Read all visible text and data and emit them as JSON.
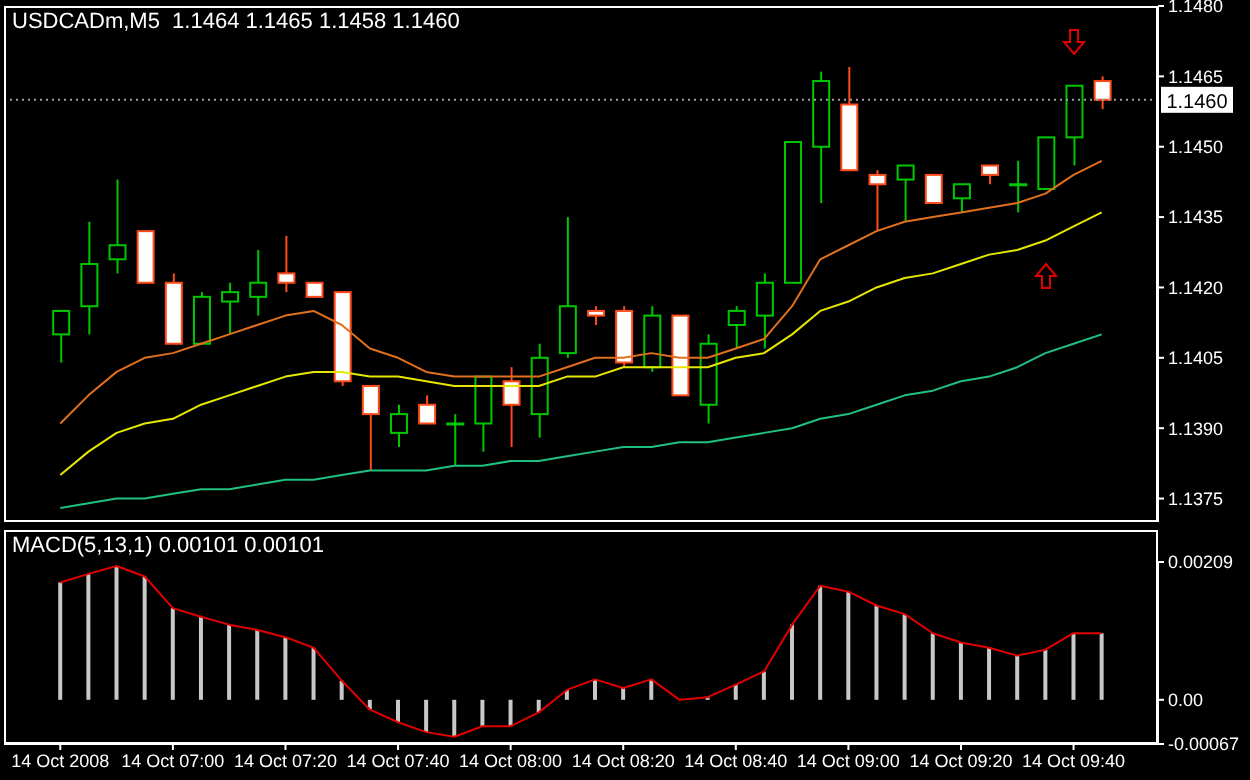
{
  "chart_data": [
    {
      "type": "candlestick",
      "title": "USDCADm,M5  1.1464 1.1465 1.1458 1.1460",
      "tick_labels": "y",
      "x": [
        "2008-10-14T06:40",
        "2008-10-14T06:45",
        "2008-10-14T06:50",
        "2008-10-14T06:55",
        "2008-10-14T07:00",
        "2008-10-14T07:05",
        "2008-10-14T07:10",
        "2008-10-14T07:15",
        "2008-10-14T07:20",
        "2008-10-14T07:25",
        "2008-10-14T07:30",
        "2008-10-14T07:35",
        "2008-10-14T07:40",
        "2008-10-14T07:45",
        "2008-10-14T07:50",
        "2008-10-14T07:55",
        "2008-10-14T08:00",
        "2008-10-14T08:05",
        "2008-10-14T08:10",
        "2008-10-14T08:15",
        "2008-10-14T08:20",
        "2008-10-14T08:25",
        "2008-10-14T08:30",
        "2008-10-14T08:35",
        "2008-10-14T08:40",
        "2008-10-14T08:45",
        "2008-10-14T08:50",
        "2008-10-14T08:55",
        "2008-10-14T09:00",
        "2008-10-14T09:05",
        "2008-10-14T09:10",
        "2008-10-14T09:15",
        "2008-10-14T09:20",
        "2008-10-14T09:25",
        "2008-10-14T09:30",
        "2008-10-14T09:35",
        "2008-10-14T09:40",
        "2008-10-14T09:45"
      ],
      "ohlc": [
        [
          1.141,
          1.1415,
          1.1404,
          1.1415
        ],
        [
          1.1416,
          1.1434,
          1.141,
          1.1425
        ],
        [
          1.1426,
          1.1443,
          1.1423,
          1.1429
        ],
        [
          1.1432,
          1.1432,
          1.1421,
          1.1421
        ],
        [
          1.1421,
          1.1423,
          1.1408,
          1.1408
        ],
        [
          1.1408,
          1.1419,
          1.1408,
          1.1418
        ],
        [
          1.1417,
          1.1421,
          1.141,
          1.1419
        ],
        [
          1.1418,
          1.1428,
          1.1414,
          1.1421
        ],
        [
          1.1423,
          1.1431,
          1.1419,
          1.1421
        ],
        [
          1.1421,
          1.1421,
          1.1418,
          1.1418
        ],
        [
          1.1419,
          1.1419,
          1.1399,
          1.14
        ],
        [
          1.1399,
          1.1399,
          1.1381,
          1.1393
        ],
        [
          1.1389,
          1.1395,
          1.1386,
          1.1393
        ],
        [
          1.1395,
          1.1397,
          1.1391,
          1.1391
        ],
        [
          1.1391,
          1.1393,
          1.1382,
          1.1391
        ],
        [
          1.1391,
          1.1401,
          1.1385,
          1.1401
        ],
        [
          1.14,
          1.1403,
          1.1386,
          1.1395
        ],
        [
          1.1393,
          1.1408,
          1.1388,
          1.1405
        ],
        [
          1.1406,
          1.1435,
          1.1405,
          1.1416
        ],
        [
          1.1415,
          1.1416,
          1.1412,
          1.1414
        ],
        [
          1.1415,
          1.1416,
          1.1403,
          1.1404
        ],
        [
          1.1403,
          1.1416,
          1.1402,
          1.1414
        ],
        [
          1.1414,
          1.1414,
          1.1397,
          1.1397
        ],
        [
          1.1395,
          1.141,
          1.1391,
          1.1408
        ],
        [
          1.1412,
          1.1416,
          1.1407,
          1.1415
        ],
        [
          1.1414,
          1.1423,
          1.1407,
          1.1421
        ],
        [
          1.1421,
          1.1451,
          1.1421,
          1.1451
        ],
        [
          1.145,
          1.1466,
          1.1438,
          1.1464
        ],
        [
          1.1459,
          1.1467,
          1.1445,
          1.1445
        ],
        [
          1.1444,
          1.1445,
          1.1432,
          1.1442
        ],
        [
          1.1443,
          1.1446,
          1.1434,
          1.1446
        ],
        [
          1.1444,
          1.1444,
          1.1438,
          1.1438
        ],
        [
          1.1439,
          1.1442,
          1.1436,
          1.1442
        ],
        [
          1.1446,
          1.1446,
          1.1442,
          1.1444
        ],
        [
          1.1442,
          1.1447,
          1.1436,
          1.1442
        ],
        [
          1.1441,
          1.1452,
          1.1441,
          1.1452
        ],
        [
          1.1452,
          1.1463,
          1.1446,
          1.1463
        ],
        [
          1.1464,
          1.1465,
          1.1458,
          1.146
        ]
      ],
      "series": [
        {
          "type": "line",
          "color": "#e0701c",
          "values": [
            1.1391,
            1.1397,
            1.1402,
            1.1405,
            1.1406,
            1.1408,
            1.141,
            1.1412,
            1.1414,
            1.1415,
            1.1412,
            1.1407,
            1.1405,
            1.1402,
            1.1401,
            1.1401,
            1.1401,
            1.1401,
            1.1403,
            1.1405,
            1.1405,
            1.1406,
            1.1405,
            1.1405,
            1.1407,
            1.1409,
            1.1416,
            1.1426,
            1.1429,
            1.1432,
            1.1434,
            1.1435,
            1.1436,
            1.1437,
            1.1438,
            1.144,
            1.1444,
            1.1447
          ]
        },
        {
          "type": "line",
          "color": "#e6e600",
          "values": [
            1.138,
            1.1385,
            1.1389,
            1.1391,
            1.1392,
            1.1395,
            1.1397,
            1.1399,
            1.1401,
            1.1402,
            1.1402,
            1.1401,
            1.1401,
            1.14,
            1.1399,
            1.1399,
            1.1399,
            1.1399,
            1.1401,
            1.1401,
            1.1403,
            1.1403,
            1.1403,
            1.1403,
            1.1405,
            1.1406,
            1.141,
            1.1415,
            1.1417,
            1.142,
            1.1422,
            1.1423,
            1.1425,
            1.1427,
            1.1428,
            1.143,
            1.1433,
            1.1436
          ]
        },
        {
          "type": "line",
          "color": "#20c080",
          "values": [
            1.1373,
            1.1374,
            1.1375,
            1.1375,
            1.1376,
            1.1377,
            1.1377,
            1.1378,
            1.1379,
            1.1379,
            1.138,
            1.1381,
            1.1381,
            1.1381,
            1.1382,
            1.1382,
            1.1383,
            1.1383,
            1.1384,
            1.1385,
            1.1386,
            1.1386,
            1.1387,
            1.1387,
            1.1388,
            1.1389,
            1.139,
            1.1392,
            1.1393,
            1.1395,
            1.1397,
            1.1398,
            1.14,
            1.1401,
            1.1403,
            1.1406,
            1.1408,
            1.141
          ]
        }
      ],
      "xlim": [
        "2008-10-14T06:30",
        "2008-10-14T09:55"
      ],
      "ylim": [
        1.137,
        1.148
      ],
      "yticks": [
        {
          "value": 1.1375,
          "label": "1.1375"
        },
        {
          "value": 1.139,
          "label": "1.1390"
        },
        {
          "value": 1.1405,
          "label": "1.1405"
        },
        {
          "value": 1.142,
          "label": "1.1420"
        },
        {
          "value": 1.1435,
          "label": "1.1435"
        },
        {
          "value": 1.145,
          "label": "1.1450"
        },
        {
          "value": 1.1465,
          "label": "1.1465"
        },
        {
          "value": 1.148,
          "label": "1.1480"
        }
      ],
      "ref_lines": [
        {
          "axis": "y",
          "value": 1.146,
          "label": "1.1460",
          "color": "#a0a0a0",
          "line_style": "dotted"
        }
      ]
    },
    {
      "type": "bar",
      "title": "MACD(5,13,1) 0.00101 0.00101",
      "x": [
        "2008-10-14T06:40",
        "2008-10-14T06:45",
        "2008-10-14T06:50",
        "2008-10-14T06:55",
        "2008-10-14T07:00",
        "2008-10-14T07:05",
        "2008-10-14T07:10",
        "2008-10-14T07:15",
        "2008-10-14T07:20",
        "2008-10-14T07:25",
        "2008-10-14T07:30",
        "2008-10-14T07:35",
        "2008-10-14T07:40",
        "2008-10-14T07:45",
        "2008-10-14T07:50",
        "2008-10-14T07:55",
        "2008-10-14T08:00",
        "2008-10-14T08:05",
        "2008-10-14T08:10",
        "2008-10-14T08:15",
        "2008-10-14T08:20",
        "2008-10-14T08:25",
        "2008-10-14T08:30",
        "2008-10-14T08:35",
        "2008-10-14T08:40",
        "2008-10-14T08:45",
        "2008-10-14T08:50",
        "2008-10-14T08:55",
        "2008-10-14T09:00",
        "2008-10-14T09:05",
        "2008-10-14T09:10",
        "2008-10-14T09:15",
        "2008-10-14T09:20",
        "2008-10-14T09:25",
        "2008-10-14T09:30",
        "2008-10-14T09:35",
        "2008-10-14T09:40",
        "2008-10-14T09:45"
      ],
      "series": [
        {
          "color": "#c8c8c8",
          "values": [
            0.00178,
            0.00191,
            0.00203,
            0.00187,
            0.00139,
            0.00126,
            0.00114,
            0.00106,
            0.00095,
            0.00079,
            0.00029,
            -0.00015,
            -0.00034,
            -0.00049,
            -0.00056,
            -0.0004,
            -0.0004,
            -0.00019,
            0.00015,
            0.00031,
            0.00018,
            0.00031,
            0,
            4e-05,
            0.00023,
            0.00043,
            0.00114,
            0.00173,
            0.00164,
            0.00143,
            0.0013,
            0.00101,
            0.00087,
            0.00079,
            0.00067,
            0.00076,
            0.00101,
            0.00101
          ]
        },
        {
          "type": "line",
          "color": "#e00000",
          "values": [
            0.00178,
            0.00191,
            0.00203,
            0.00187,
            0.00139,
            0.00126,
            0.00114,
            0.00106,
            0.00095,
            0.00079,
            0.00029,
            -0.00015,
            -0.00034,
            -0.00049,
            -0.00056,
            -0.0004,
            -0.0004,
            -0.00019,
            0.00015,
            0.00031,
            0.00018,
            0.00031,
            0,
            4e-05,
            0.00023,
            0.00043,
            0.00114,
            0.00173,
            0.00164,
            0.00143,
            0.0013,
            0.00101,
            0.00087,
            0.00079,
            0.00067,
            0.00076,
            0.00101,
            0.00101
          ]
        }
      ],
      "xlim": [
        "2008-10-14T06:30",
        "2008-10-14T09:55"
      ],
      "xticks": [
        {
          "value": "2008-10-14T06:40",
          "label": "14 Oct 2008"
        },
        {
          "value": "2008-10-14T07:00",
          "label": "14 Oct 07:00"
        },
        {
          "value": "2008-10-14T07:20",
          "label": "14 Oct 07:20"
        },
        {
          "value": "2008-10-14T07:40",
          "label": "14 Oct 07:40"
        },
        {
          "value": "2008-10-14T08:00",
          "label": "14 Oct 08:00"
        },
        {
          "value": "2008-10-14T08:20",
          "label": "14 Oct 08:20"
        },
        {
          "value": "2008-10-14T08:40",
          "label": "14 Oct 08:40"
        },
        {
          "value": "2008-10-14T09:00",
          "label": "14 Oct 09:00"
        },
        {
          "value": "2008-10-14T09:20",
          "label": "14 Oct 09:20"
        },
        {
          "value": "2008-10-14T09:40",
          "label": "14 Oct 09:40"
        }
      ],
      "ylim": [
        -0.00067,
        0.00209
      ],
      "yticks": [
        {
          "value": -0.00067,
          "label": "-0.00067"
        },
        {
          "value": 0,
          "label": "0.00"
        },
        {
          "value": 0.00209,
          "label": "0.00209"
        }
      ]
    }
  ]
}
